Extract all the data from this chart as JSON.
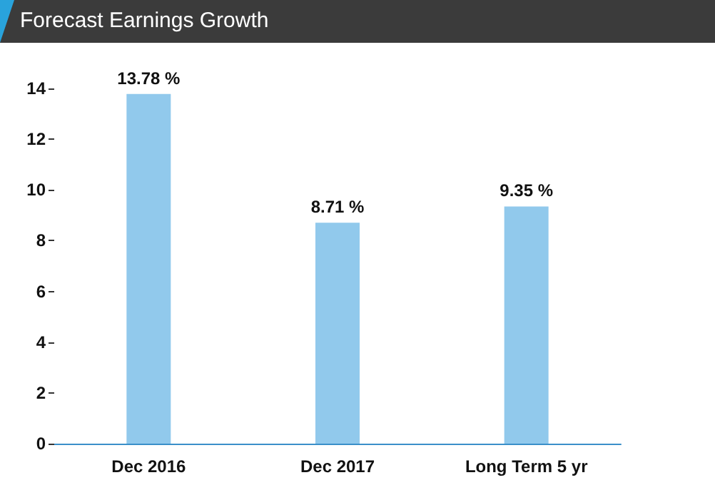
{
  "chart_data": {
    "type": "bar",
    "title": "Forecast Earnings Growth",
    "categories": [
      "Dec 2016",
      "Dec 2017",
      "Long Term 5 yr"
    ],
    "values": [
      13.78,
      8.71,
      9.35
    ],
    "value_labels": [
      "13.78 %",
      "8.71 %",
      "9.35 %"
    ],
    "color": "#91c9ec",
    "ylim": [
      0,
      14
    ],
    "yticks": [
      0,
      2,
      4,
      6,
      8,
      10,
      12,
      14
    ],
    "grid": false
  }
}
